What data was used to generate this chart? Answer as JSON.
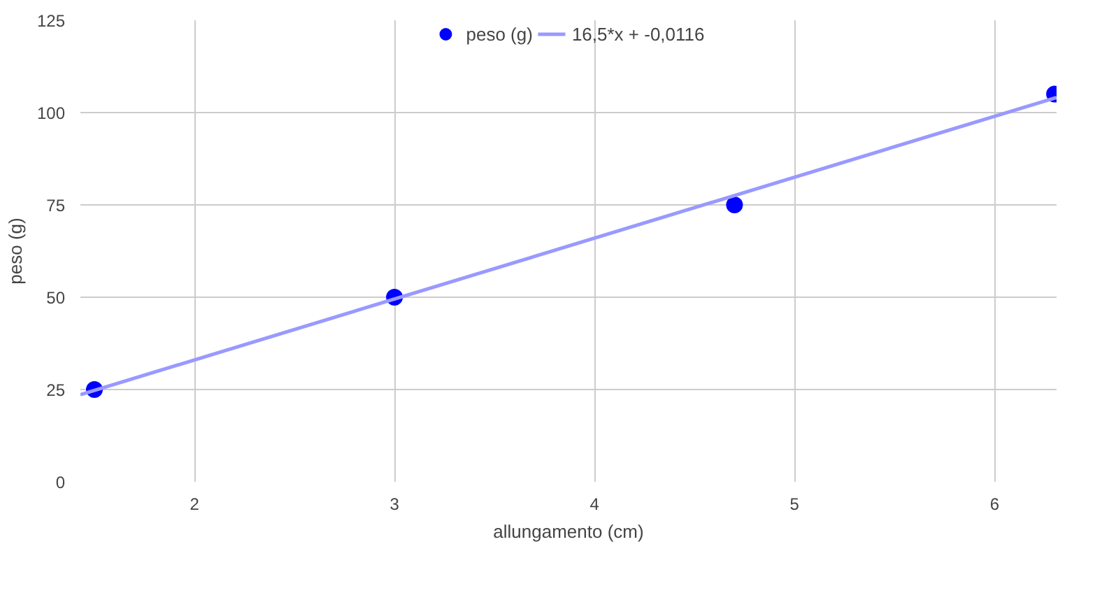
{
  "chart_data": {
    "type": "scatter",
    "xlabel": "allungamento (cm)",
    "ylabel": "peso (g)",
    "xlim": [
      1.43,
      6.31
    ],
    "ylim": [
      0,
      125
    ],
    "xticks": [
      2,
      3,
      4,
      5,
      6
    ],
    "yticks": [
      0,
      25,
      50,
      75,
      100,
      125
    ],
    "grid": true,
    "legend": "top",
    "marker": "circle",
    "series": [
      {
        "name": "peso (g)",
        "color": "#0000ff",
        "x": [
          1.5,
          3,
          4.7,
          6.3
        ],
        "values": [
          25,
          50,
          75,
          105
        ]
      },
      {
        "name": "16,5*x + -0,0116",
        "type": "line",
        "color": "#9999ff",
        "x": [
          1.43,
          6.31
        ],
        "values": [
          23.6,
          104.1
        ],
        "line_style": "solid",
        "marker": "none"
      }
    ]
  }
}
